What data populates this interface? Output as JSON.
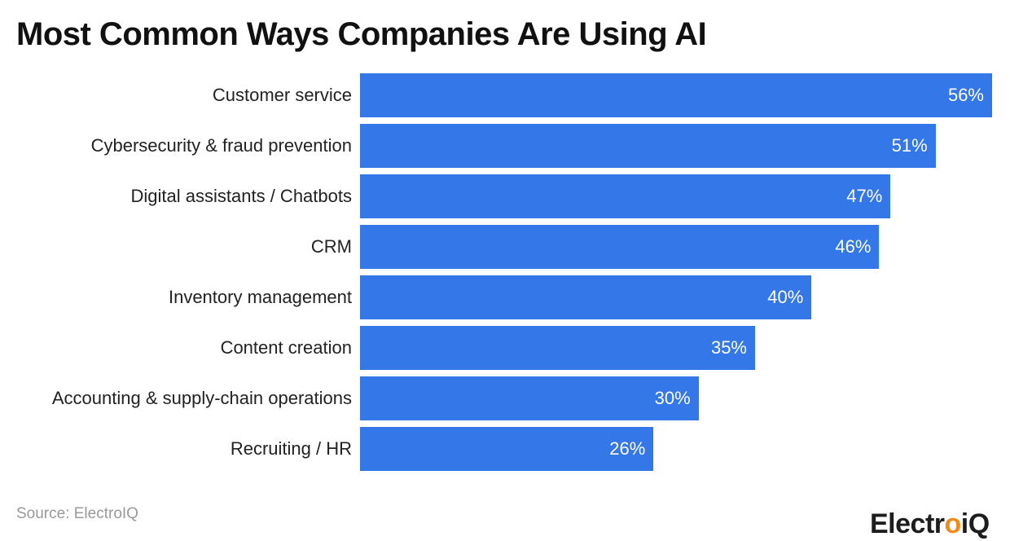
{
  "title": "Most Common Ways Companies Are Using AI",
  "source": "Source: ElectroIQ",
  "logo": {
    "text": "ElectroiQ",
    "accent": "#f08a1c"
  },
  "colors": {
    "bar": "#3477e9"
  },
  "chart_data": {
    "type": "bar",
    "orientation": "horizontal",
    "title": "Most Common Ways Companies Are Using AI",
    "categories": [
      "Customer service",
      "Cybersecurity & fraud prevention",
      "Digital assistants / Chatbots",
      "CRM",
      "Inventory management",
      "Content creation",
      "Accounting & supply-chain operations",
      "Recruiting / HR"
    ],
    "values": [
      56,
      51,
      47,
      46,
      40,
      35,
      30,
      26
    ],
    "value_labels": [
      "56%",
      "51%",
      "47%",
      "46%",
      "40%",
      "35%",
      "30%",
      "26%"
    ],
    "unit": "%",
    "xlim": [
      0,
      56
    ],
    "grid": false
  }
}
